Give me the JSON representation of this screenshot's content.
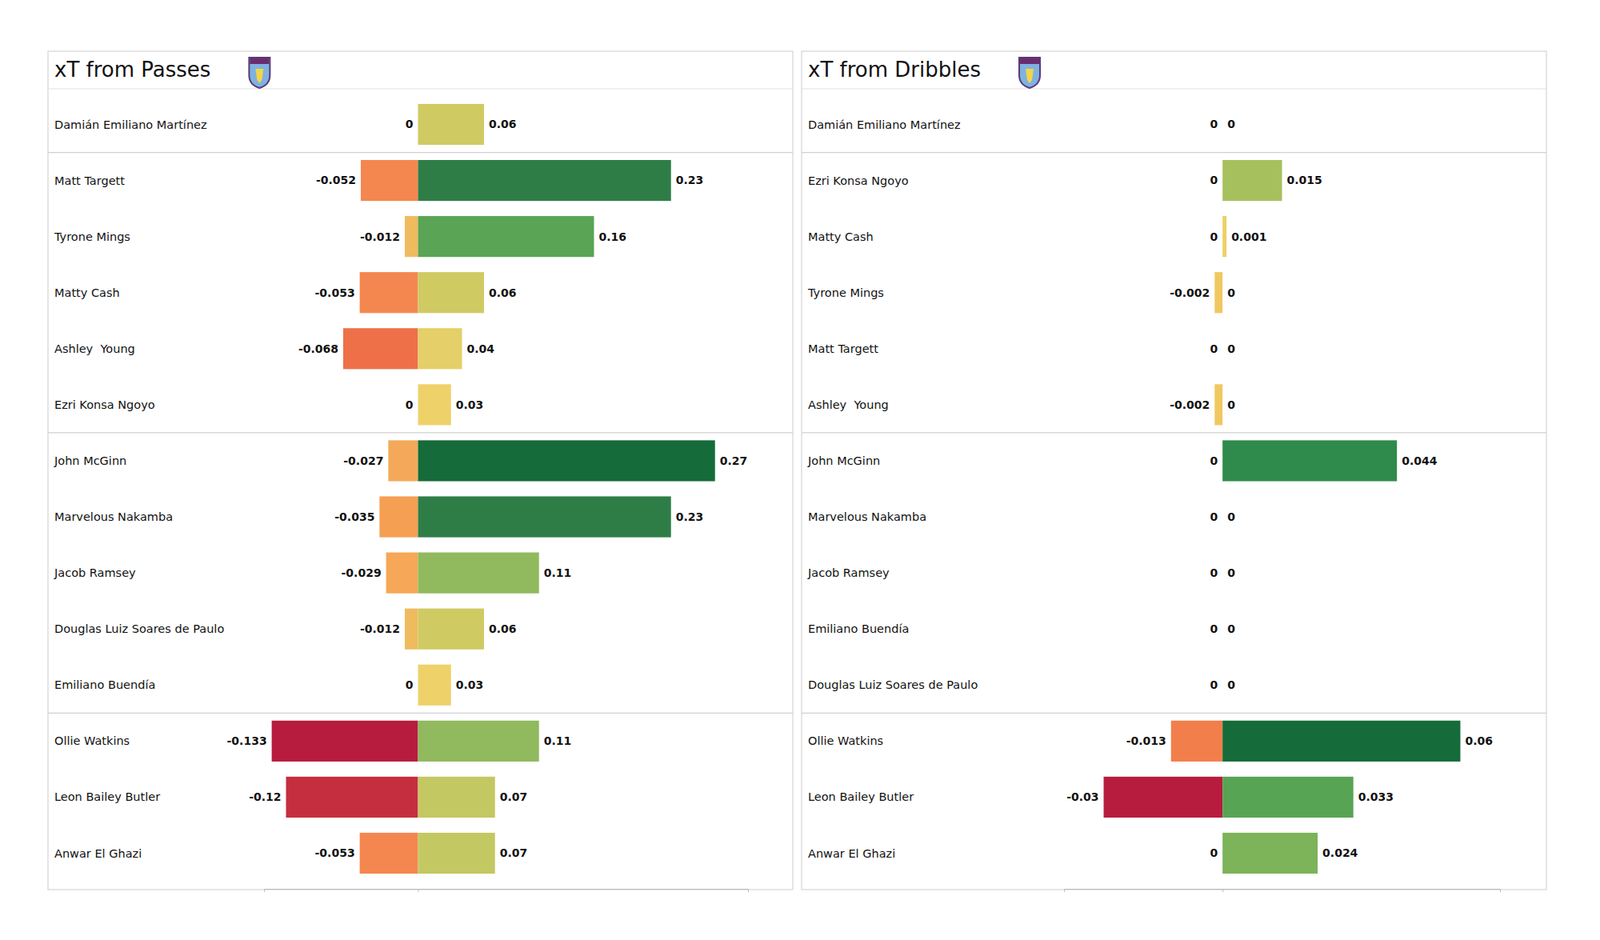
{
  "chart_data": [
    {
      "type": "bar",
      "title": "xT from Passes",
      "orientation": "horizontal",
      "categories": [
        "Damián Emiliano Martínez",
        "Matt Targett",
        "Tyrone Mings",
        "Matty Cash",
        "Ashley  Young",
        "Ezri Konsa Ngoyo",
        "John McGinn",
        "Marvelous Nakamba",
        "Jacob Ramsey",
        "Douglas Luiz Soares de Paulo",
        "Emiliano Buendía",
        "Ollie Watkins",
        "Leon Bailey Butler",
        "Anwar El Ghazi"
      ],
      "series": [
        {
          "values": [
            0,
            -0.052,
            -0.012,
            -0.053,
            -0.068,
            0,
            -0.027,
            -0.035,
            -0.029,
            -0.012,
            0,
            -0.133,
            -0.12,
            -0.053
          ],
          "colors": [
            "#f0d26a",
            "#f4874f",
            "#f0bb5e",
            "#f4874f",
            "#ee7049",
            "#f0d26a",
            "#f4a95a",
            "#f59f53",
            "#f6a757",
            "#f0bb5e",
            "#f0d26a",
            "#b71c3e",
            "#c52e3e",
            "#f4874f"
          ]
        },
        {
          "values": [
            0.06,
            0.23,
            0.16,
            0.06,
            0.04,
            0.03,
            0.27,
            0.23,
            0.11,
            0.06,
            0.03,
            0.11,
            0.07,
            0.07
          ],
          "colors": [
            "#cfca62",
            "#2e7d47",
            "#5aa455",
            "#cfca62",
            "#e4cf68",
            "#efd16a",
            "#156b39",
            "#2e7d47",
            "#91b95e",
            "#cfca62",
            "#efd16a",
            "#91b95e",
            "#c4c862",
            "#c4c862"
          ]
        }
      ],
      "xlim": [
        -0.14,
        0.3
      ],
      "xticks": [
        0
      ],
      "data_labels": true,
      "tick_labels": false
    },
    {
      "type": "bar",
      "title": "xT from Dribbles",
      "orientation": "horizontal",
      "categories": [
        "Damián Emiliano Martínez",
        "Ezri Konsa Ngoyo",
        "Matty Cash",
        "Tyrone Mings",
        "Matt Targett",
        "Ashley  Young",
        "John McGinn",
        "Marvelous Nakamba",
        "Jacob Ramsey",
        "Emiliano Buendía",
        "Douglas Luiz Soares de Paulo",
        "Ollie Watkins",
        "Leon Bailey Butler",
        "Anwar El Ghazi"
      ],
      "series": [
        {
          "values": [
            0,
            0,
            0,
            -0.002,
            0,
            -0.002,
            0,
            0,
            0,
            0,
            0,
            -0.013,
            -0.03,
            0
          ],
          "colors": [
            "#f0d26a",
            "#f0d26a",
            "#f0d26a",
            "#f0c862",
            "#f0d26a",
            "#f0c862",
            "#f0d26a",
            "#f0d26a",
            "#f0d26a",
            "#f0d26a",
            "#f0d26a",
            "#f27f4b",
            "#b71c3e",
            "#f0d26a"
          ]
        },
        {
          "values": [
            0,
            0.015,
            0.001,
            0,
            0,
            0,
            0.044,
            0,
            0,
            0,
            0,
            0.06,
            0.033,
            0.024
          ],
          "colors": [
            "#f0d26a",
            "#a7c05e",
            "#ecd166",
            "#f0d26a",
            "#f0d26a",
            "#f0d26a",
            "#2e8b4c",
            "#f0d26a",
            "#f0d26a",
            "#f0d26a",
            "#f0d26a",
            "#156b39",
            "#58a455",
            "#7db359"
          ]
        }
      ],
      "xlim": [
        -0.04,
        0.07
      ],
      "xticks": [
        0
      ],
      "data_labels": true,
      "tick_labels": false
    }
  ]
}
